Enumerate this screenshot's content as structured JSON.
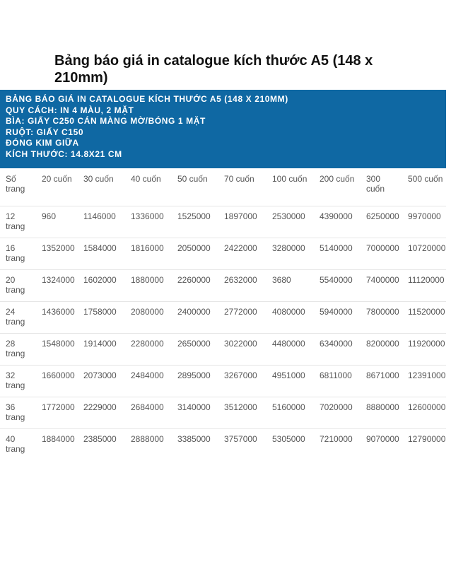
{
  "title": "Bảng báo giá in catalogue kích thước A5 (148 x 210mm)",
  "header_lines": [
    "BẢNG BÁO GIÁ IN CATALOGUE KÍCH THƯỚC A5 (148 X 210MM)",
    "QUY CÁCH: IN 4 MÀU, 2 MẶT",
    "BÌA: GIẤY C250 CÁN MÀNG MỜ/BÓNG 1 MẶT",
    "RUỘT: GIẤY C150",
    "ĐÓNG KIM GIỮA",
    "KÍCH THƯỚC: 14.8X21 CM"
  ],
  "table": {
    "headers": [
      "Số trang",
      "20 cuốn",
      "30 cuốn",
      "40 cuốn",
      "50 cuốn",
      "70 cuốn",
      "100 cuốn",
      "200 cuốn",
      "300 cuốn",
      "500 cuốn"
    ],
    "rows": [
      [
        "12 trang",
        "960",
        "1146000",
        "1336000",
        "1525000",
        "1897000",
        "2530000",
        "4390000",
        "6250000",
        "9970000"
      ],
      [
        "16 trang",
        "1352000",
        "1584000",
        "1816000",
        "2050000",
        "2422000",
        "3280000",
        "5140000",
        "7000000",
        "10720000"
      ],
      [
        "20 trang",
        "1324000",
        "1602000",
        "1880000",
        "2260000",
        "2632000",
        "3680",
        "5540000",
        "7400000",
        "11120000"
      ],
      [
        "24 trang",
        "1436000",
        "1758000",
        "2080000",
        "2400000",
        "2772000",
        "4080000",
        "5940000",
        "7800000",
        "11520000"
      ],
      [
        "28 trang",
        "1548000",
        "1914000",
        "2280000",
        "2650000",
        "3022000",
        "4480000",
        "6340000",
        "8200000",
        "11920000"
      ],
      [
        "32 trang",
        "1660000",
        "2073000",
        "2484000",
        "2895000",
        "3267000",
        "4951000",
        "6811000",
        "8671000",
        "12391000"
      ],
      [
        "36 trang",
        "1772000",
        "2229000",
        "2684000",
        "3140000",
        "3512000",
        "5160000",
        "7020000",
        "8880000",
        "12600000"
      ],
      [
        "40 trang",
        "1884000",
        "2385000",
        "2888000",
        "3385000",
        "3757000",
        "5305000",
        "7210000",
        "9070000",
        "12790000"
      ]
    ]
  }
}
